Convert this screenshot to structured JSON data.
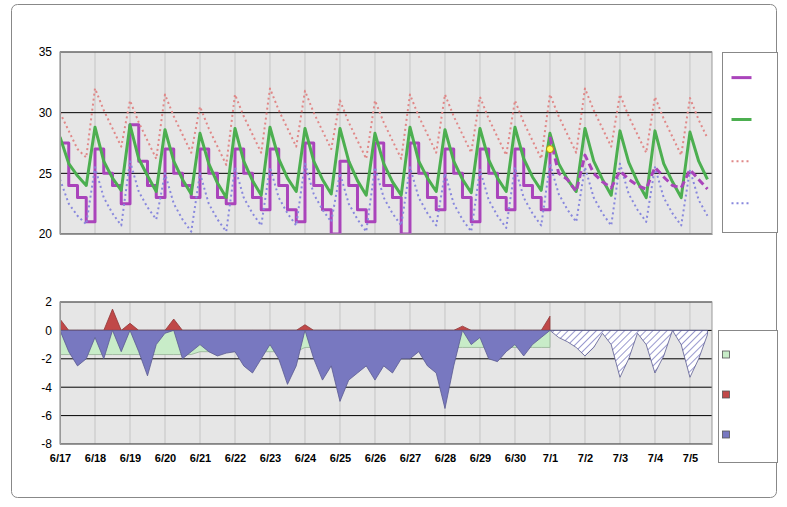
{
  "chart_data": [
    {
      "type": "line",
      "x": [
        0,
        0.25,
        0.5,
        0.75,
        1,
        1.25,
        1.5,
        1.75,
        2,
        2.25,
        2.5,
        2.75,
        3,
        3.25,
        3.5,
        3.75,
        4,
        4.25,
        4.5,
        4.75,
        5,
        5.25,
        5.5,
        5.75,
        6,
        6.25,
        6.5,
        6.75,
        7,
        7.25,
        7.5,
        7.75,
        8,
        8.25,
        8.5,
        8.75,
        9,
        9.25,
        9.5,
        9.75,
        10,
        10.25,
        10.5,
        10.75,
        11,
        11.25,
        11.5,
        11.75,
        12,
        12.25,
        12.5,
        12.75,
        13,
        13.25,
        13.5,
        13.75,
        14,
        14.25,
        14.5,
        14.75,
        15,
        15.25,
        15.5,
        15.75,
        16,
        16.25,
        16.5,
        16.75,
        17,
        17.25,
        17.5,
        17.75,
        18,
        18.25,
        18.5
      ],
      "xlim": [
        0,
        18.63
      ],
      "ylim": [
        20,
        35
      ],
      "xticks": [
        0,
        1,
        2,
        3,
        4,
        5,
        6,
        7,
        8,
        9,
        10,
        11,
        12,
        13,
        14,
        15,
        16,
        17,
        18
      ],
      "yticks": [
        20,
        25,
        30,
        35
      ],
      "grid": true,
      "legend": "right",
      "tick_labels": "y",
      "series": [
        {
          "color": "#aa44bb",
          "line_style": "step",
          "values": [
            27.5,
            24,
            23,
            21,
            27,
            25,
            24,
            22.5,
            29,
            26,
            24,
            23,
            27,
            25,
            24,
            23,
            27,
            25,
            23,
            22.5,
            27,
            25,
            23,
            22,
            27,
            24,
            22,
            21,
            27.5,
            24,
            22,
            20,
            26,
            24,
            22,
            21,
            27.5,
            24,
            23,
            20,
            27.5,
            25,
            23,
            22,
            27,
            25,
            23,
            21,
            27,
            25,
            23,
            22,
            27,
            24,
            23,
            22,
            28,
            null,
            null,
            null,
            null,
            null,
            null,
            null,
            null,
            null,
            null,
            null,
            null,
            null,
            null,
            null,
            null,
            null,
            null
          ]
        },
        {
          "color": "#4caf50",
          "line_style": "solid",
          "values": [
            28.0,
            25.8,
            24.8,
            24.0,
            28.8,
            26.0,
            24.6,
            23.6,
            29.0,
            26.2,
            24.8,
            23.5,
            28.6,
            26.0,
            24.5,
            23.3,
            28.3,
            25.8,
            24.2,
            23.0,
            28.7,
            26.0,
            24.4,
            23.2,
            28.8,
            26.2,
            24.6,
            23.5,
            28.7,
            26.0,
            24.5,
            23.3,
            28.7,
            26.0,
            24.4,
            23.2,
            28.3,
            25.8,
            24.3,
            23.2,
            28.8,
            26.0,
            24.6,
            23.5,
            28.6,
            26.0,
            24.5,
            23.4,
            28.7,
            26.1,
            24.6,
            23.5,
            28.8,
            26.2,
            24.7,
            23.6,
            28.3,
            25.8,
            24.5,
            23.5,
            28.7,
            26.0,
            24.5,
            23.2,
            28.5,
            25.9,
            24.3,
            23.0,
            28.5,
            25.8,
            24.3,
            23.0,
            28.4,
            26.0,
            24.5
          ]
        },
        {
          "color": "#e08888",
          "line_style": "dotted",
          "values": [
            30.0,
            28.5,
            27.0,
            26.3,
            32.0,
            30.2,
            28.7,
            27.2,
            31.0,
            29.2,
            27.7,
            26.2,
            31.5,
            29.7,
            28.2,
            26.7,
            30.5,
            28.7,
            27.2,
            25.7,
            31.5,
            29.7,
            28.2,
            26.7,
            32.0,
            30.2,
            28.7,
            27.2,
            31.8,
            30.0,
            28.5,
            27.0,
            31.0,
            29.2,
            27.7,
            26.2,
            31.0,
            29.2,
            27.7,
            26.2,
            31.5,
            29.7,
            28.2,
            26.7,
            31.5,
            29.7,
            28.2,
            26.7,
            31.3,
            29.5,
            28.0,
            26.5,
            31.0,
            29.2,
            27.7,
            26.2,
            31.5,
            29.7,
            28.2,
            26.7,
            32.0,
            30.2,
            28.7,
            27.2,
            31.5,
            29.7,
            28.2,
            26.7,
            31.3,
            29.5,
            28.0,
            26.5,
            31.2,
            29.4,
            27.9
          ]
        },
        {
          "color": "#8888dd",
          "line_style": "dotted",
          "values": [
            24.5,
            22.5,
            21.5,
            20.8,
            25.5,
            23.0,
            21.7,
            20.7,
            26.0,
            23.5,
            22.2,
            21.2,
            25.0,
            22.5,
            21.2,
            20.2,
            25.0,
            22.5,
            21.2,
            20.2,
            25.5,
            23.0,
            21.7,
            20.7,
            25.5,
            23.0,
            21.7,
            20.7,
            25.8,
            23.3,
            22.0,
            21.0,
            25.0,
            22.5,
            21.2,
            20.2,
            25.5,
            23.0,
            21.7,
            20.7,
            25.5,
            23.0,
            21.7,
            20.7,
            25.0,
            22.5,
            21.2,
            20.2,
            25.3,
            22.8,
            21.5,
            20.5,
            25.5,
            23.0,
            21.7,
            20.7,
            25.8,
            23.3,
            22.0,
            21.0,
            25.5,
            23.0,
            21.7,
            20.7,
            25.8,
            23.3,
            22.0,
            21.0,
            25.5,
            23.0,
            21.7,
            20.7,
            25.3,
            22.8,
            21.5
          ]
        },
        {
          "color": "#aa44bb",
          "line_style": "dashed",
          "values": [
            null,
            null,
            null,
            null,
            null,
            null,
            null,
            null,
            null,
            null,
            null,
            null,
            null,
            null,
            null,
            null,
            null,
            null,
            null,
            null,
            null,
            null,
            null,
            null,
            null,
            null,
            null,
            null,
            null,
            null,
            null,
            null,
            null,
            null,
            null,
            null,
            null,
            null,
            null,
            null,
            null,
            null,
            null,
            null,
            null,
            null,
            null,
            null,
            null,
            null,
            null,
            null,
            null,
            null,
            null,
            null,
            28,
            25,
            24.5,
            23.5,
            26.5,
            25,
            24.3,
            23.8,
            25.2,
            24.5,
            24,
            23.7,
            25.5,
            24.7,
            24,
            23.8,
            25.3,
            24.5,
            23.7
          ]
        },
        {
          "type": "scatter",
          "marker": "circle",
          "color": "#ffff55",
          "values": [
            null,
            null,
            null,
            null,
            null,
            null,
            null,
            null,
            null,
            null,
            null,
            null,
            null,
            null,
            null,
            null,
            null,
            null,
            null,
            null,
            null,
            null,
            null,
            null,
            null,
            null,
            null,
            null,
            null,
            null,
            null,
            null,
            null,
            null,
            null,
            null,
            null,
            null,
            null,
            null,
            null,
            null,
            null,
            null,
            null,
            null,
            null,
            null,
            null,
            null,
            null,
            null,
            null,
            null,
            null,
            null,
            27,
            null,
            null,
            null,
            null,
            null,
            null,
            null,
            null,
            null,
            null,
            null,
            null,
            null,
            null,
            null,
            null,
            null,
            null
          ]
        }
      ]
    },
    {
      "type": "area",
      "x": [
        0,
        0.25,
        0.5,
        0.75,
        1,
        1.25,
        1.5,
        1.75,
        2,
        2.25,
        2.5,
        2.75,
        3,
        3.25,
        3.5,
        3.75,
        4,
        4.25,
        4.5,
        4.75,
        5,
        5.25,
        5.5,
        5.75,
        6,
        6.25,
        6.5,
        6.75,
        7,
        7.25,
        7.5,
        7.75,
        8,
        8.25,
        8.5,
        8.75,
        9,
        9.25,
        9.5,
        9.75,
        10,
        10.25,
        10.5,
        10.75,
        11,
        11.25,
        11.5,
        11.75,
        12,
        12.25,
        12.5,
        12.75,
        13,
        13.25,
        13.5,
        13.75,
        14,
        14.25,
        14.5,
        14.75,
        15,
        15.25,
        15.5,
        15.75,
        16,
        16.25,
        16.5,
        16.75,
        17,
        17.25,
        17.5,
        17.75,
        18,
        18.25,
        18.5
      ],
      "xlim": [
        0,
        18.63
      ],
      "ylim": [
        -8,
        2
      ],
      "xticks": [
        {
          "value": 0,
          "label": "6/17"
        },
        {
          "value": 1,
          "label": "6/18"
        },
        {
          "value": 2,
          "label": "6/19"
        },
        {
          "value": 3,
          "label": "6/20"
        },
        {
          "value": 4,
          "label": "6/21"
        },
        {
          "value": 5,
          "label": "6/22"
        },
        {
          "value": 6,
          "label": "6/23"
        },
        {
          "value": 7,
          "label": "6/24"
        },
        {
          "value": 8,
          "label": "6/25"
        },
        {
          "value": 9,
          "label": "6/26"
        },
        {
          "value": 10,
          "label": "6/27"
        },
        {
          "value": 11,
          "label": "6/28"
        },
        {
          "value": 12,
          "label": "6/29"
        },
        {
          "value": 13,
          "label": "6/30"
        },
        {
          "value": 14,
          "label": "7/1"
        },
        {
          "value": 15,
          "label": "7/2"
        },
        {
          "value": 16,
          "label": "7/3"
        },
        {
          "value": 17,
          "label": "7/4"
        },
        {
          "value": 18,
          "label": "7/5"
        }
      ],
      "yticks": [
        -8,
        -6,
        -4,
        -2,
        0,
        2
      ],
      "grid": true,
      "legend": "right",
      "series": [
        {
          "color": "#c8ecc8",
          "line_style": "solid",
          "values": [
            -1.7,
            -1.7,
            -1.7,
            -1.7,
            -1.7,
            -1.7,
            -1.7,
            -1.7,
            -1.7,
            -1.7,
            -1.7,
            -1.7,
            -1.7,
            -1.7,
            -1.7,
            -1.7,
            -1.5,
            -1.5,
            -1.5,
            -1.5,
            -1.5,
            -1.5,
            -1.5,
            -1.5,
            -1.5,
            -1.5,
            -1.5,
            -1.5,
            -1.2,
            -1.2,
            -1.2,
            -1.2,
            -1.2,
            -1.2,
            -1.2,
            -1.2,
            -1.2,
            -1.2,
            -1.2,
            -1.2,
            -1.2,
            -1.2,
            -1.2,
            -1.2,
            -1.2,
            -1.2,
            -1.2,
            -1.2,
            -1.2,
            -1.2,
            -1.2,
            -1.2,
            -1.2,
            -1.2,
            -1.2,
            -1.2,
            -1.2,
            null,
            null,
            null,
            null,
            null,
            null,
            null,
            null,
            null,
            null,
            null,
            null,
            null,
            null,
            null,
            null,
            null,
            null
          ]
        },
        {
          "color": "#c04848",
          "line_style": "solid",
          "values": [
            0.8,
            0,
            0,
            0,
            0,
            0,
            1.5,
            0,
            0.5,
            0,
            0,
            0,
            0,
            0.8,
            0,
            0,
            0,
            0,
            0,
            0,
            0,
            0,
            0,
            0,
            0,
            0,
            0,
            0,
            0.4,
            0,
            0,
            0,
            0,
            0,
            0,
            0,
            0,
            0,
            0,
            0,
            0,
            0,
            0,
            0,
            0,
            0,
            0.3,
            0,
            0,
            0,
            0,
            0,
            0,
            0,
            0,
            0,
            1.0,
            null,
            null,
            null,
            null,
            null,
            null,
            null,
            null,
            null,
            null,
            null,
            null,
            null,
            null,
            null,
            null,
            null,
            null
          ]
        },
        {
          "color": "#7878c0",
          "line_style": "solid",
          "values": [
            0,
            -1.5,
            -2.5,
            -2.0,
            -0.5,
            -2.0,
            0,
            -1.5,
            0,
            -1.5,
            -3.2,
            -1.0,
            -0.2,
            0,
            -2.0,
            -1.5,
            -1.0,
            -1.5,
            -1.8,
            -1.6,
            -1.5,
            -2.5,
            -3.0,
            -2.0,
            -1.0,
            -2.0,
            -3.8,
            -2.5,
            0,
            -2.0,
            -3.5,
            -2.5,
            -5.0,
            -3.5,
            -3.0,
            -2.5,
            -3.5,
            -2.5,
            -3.0,
            -2.0,
            -2.0,
            -1.5,
            -2.5,
            -3.0,
            -5.5,
            -2.5,
            0,
            -1.0,
            -0.5,
            -2.0,
            -2.2,
            -1.5,
            -1.0,
            -1.8,
            -1.0,
            -0.5,
            0,
            null,
            null,
            null,
            null,
            null,
            null,
            null,
            null,
            null,
            null,
            null,
            null,
            null,
            null,
            null,
            null,
            null,
            null
          ]
        },
        {
          "color": "#7878c0",
          "line_style": "hatched",
          "values": [
            null,
            null,
            null,
            null,
            null,
            null,
            null,
            null,
            null,
            null,
            null,
            null,
            null,
            null,
            null,
            null,
            null,
            null,
            null,
            null,
            null,
            null,
            null,
            null,
            null,
            null,
            null,
            null,
            null,
            null,
            null,
            null,
            null,
            null,
            null,
            null,
            null,
            null,
            null,
            null,
            null,
            null,
            null,
            null,
            null,
            null,
            null,
            null,
            null,
            null,
            null,
            null,
            null,
            null,
            null,
            null,
            0,
            -0.5,
            -0.8,
            -1.2,
            -1.8,
            -1.2,
            -0.2,
            -1.0,
            -3.3,
            -2.0,
            -0.2,
            -1.0,
            -3.0,
            -1.8,
            0,
            -1.0,
            -3.3,
            -2.0,
            -0.3
          ]
        }
      ]
    }
  ]
}
